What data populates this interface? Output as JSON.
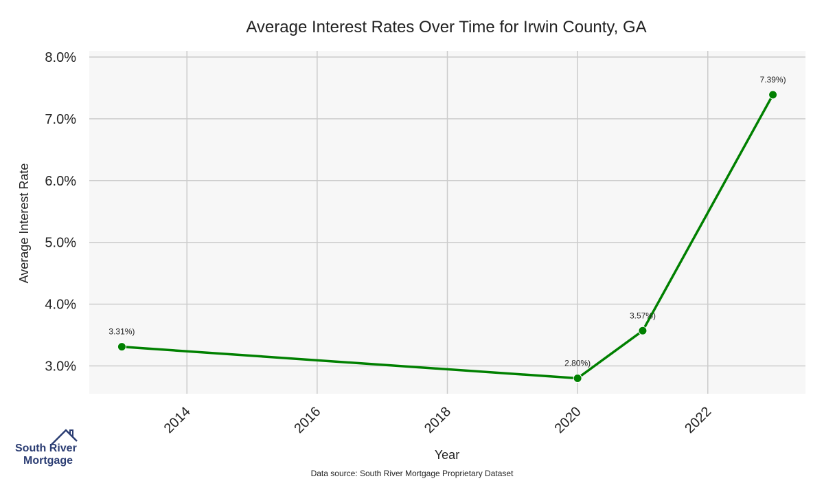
{
  "chart_data": {
    "type": "line",
    "title": "Average Interest Rates Over Time for Irwin County, GA",
    "xlabel": "Year",
    "ylabel": "Average Interest Rate",
    "xlim": [
      2012.5,
      2023.5
    ],
    "ylim": [
      2.55,
      8.1
    ],
    "x_ticks": [
      2014,
      2016,
      2018,
      2020,
      2022
    ],
    "x_tick_labels": [
      "2014",
      "2016",
      "2018",
      "2020",
      "2022"
    ],
    "y_ticks": [
      3.0,
      4.0,
      5.0,
      6.0,
      7.0,
      8.0
    ],
    "y_tick_labels": [
      "3.0%",
      "4.0%",
      "5.0%",
      "6.0%",
      "7.0%",
      "8.0%"
    ],
    "grid": true,
    "series": [
      {
        "x": [
          2013,
          2020,
          2021,
          2023
        ],
        "values": [
          3.31,
          2.8,
          3.57,
          7.39
        ],
        "point_labels": [
          "3.31%)",
          "2.80%)",
          "3.57%)",
          "7.39%)"
        ],
        "color": "#008000"
      }
    ],
    "plot_background": "#f7f7f7",
    "grid_color": "#cccccc"
  },
  "footer": {
    "source": "Data source: South River Mortgage Proprietary Dataset"
  },
  "logo": {
    "line1": "South River",
    "line2": "Mortgage",
    "color": "#2b3d73"
  }
}
